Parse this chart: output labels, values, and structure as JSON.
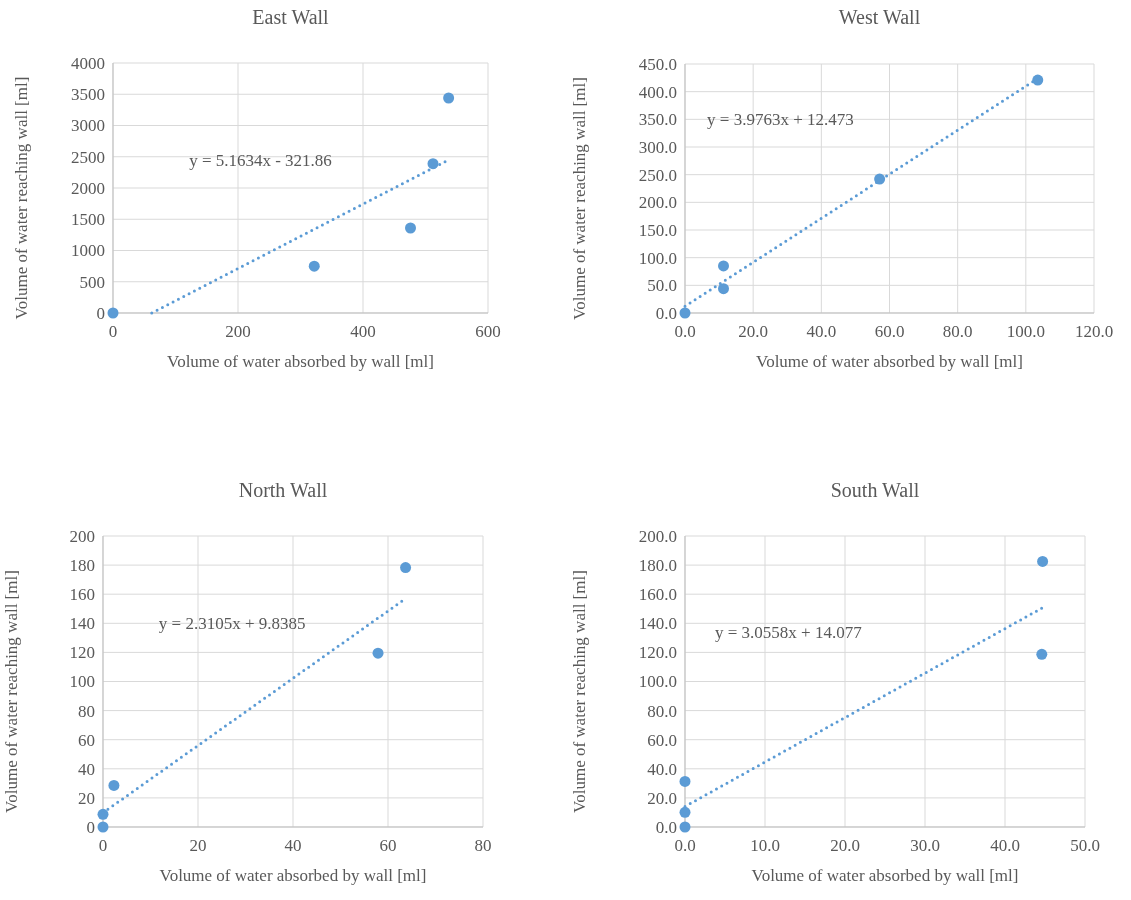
{
  "chart_data": [
    {
      "type": "scatter",
      "title": "East Wall",
      "xlabel": "Volume of water absorbed by wall [ml]",
      "ylabel": "Volume of water reaching wall [ml]",
      "xlim": [
        0,
        600
      ],
      "xticks": [
        0,
        200,
        400,
        600
      ],
      "ylim": [
        0,
        4000
      ],
      "yticks": [
        0,
        500,
        1000,
        1500,
        2000,
        2500,
        3000,
        3500,
        4000
      ],
      "grid": true,
      "annotations": [
        "y = 5.1634x - 321.86"
      ],
      "series": [
        {
          "color": "#5b9bd5",
          "marker": "circle",
          "x": [
            0,
            322,
            476,
            512,
            537
          ],
          "values": [
            0,
            750,
            1360,
            2390,
            3440
          ]
        },
        {
          "type": "line",
          "color": "#5b9bd5",
          "marker": "none",
          "line_style": "dotted",
          "x": [
            62,
            537
          ],
          "values": [
            0,
            2450
          ]
        }
      ]
    },
    {
      "type": "scatter",
      "title": "West Wall",
      "xlabel": "Volume of water absorbed by wall [ml]",
      "ylabel": "Volume of water reaching wall [ml]",
      "xlim": [
        0,
        120
      ],
      "xticks": [
        {
          "value": 0,
          "label": "0.0"
        },
        {
          "value": 20,
          "label": "20.0"
        },
        {
          "value": 40,
          "label": "40.0"
        },
        {
          "value": 60,
          "label": "60.0"
        },
        {
          "value": 80,
          "label": "80.0"
        },
        {
          "value": 100,
          "label": "100.0"
        },
        {
          "value": 120,
          "label": "120.0"
        }
      ],
      "ylim": [
        0,
        450
      ],
      "yticks": [
        {
          "value": 0,
          "label": "0.0"
        },
        {
          "value": 50,
          "label": "50.0"
        },
        {
          "value": 100,
          "label": "100.0"
        },
        {
          "value": 150,
          "label": "150.0"
        },
        {
          "value": 200,
          "label": "200.0"
        },
        {
          "value": 250,
          "label": "250.0"
        },
        {
          "value": 300,
          "label": "300.0"
        },
        {
          "value": 350,
          "label": "350.0"
        },
        {
          "value": 400,
          "label": "400.0"
        },
        {
          "value": 450,
          "label": "450.0"
        }
      ],
      "grid": true,
      "annotations": [
        "y = 3.9763x + 12.473"
      ],
      "series": [
        {
          "color": "#5b9bd5",
          "marker": "circle",
          "x": [
            0,
            11.3,
            11.3,
            57.1,
            103.5
          ],
          "values": [
            0,
            85,
            44,
            242,
            421
          ]
        },
        {
          "type": "line",
          "color": "#5b9bd5",
          "marker": "none",
          "line_style": "dotted",
          "x": [
            0,
            103.5
          ],
          "values": [
            12,
            424
          ]
        }
      ]
    },
    {
      "type": "scatter",
      "title": "North Wall",
      "xlabel": "Volume of water absorbed by wall [ml]",
      "ylabel": "Volume of water reaching wall [ml]",
      "xlim": [
        0,
        80
      ],
      "xticks": [
        0,
        20,
        40,
        60,
        80
      ],
      "ylim": [
        0,
        200
      ],
      "yticks": [
        0,
        20,
        40,
        60,
        80,
        100,
        120,
        140,
        160,
        180,
        200
      ],
      "grid": true,
      "annotations": [
        "y = 2.3105x + 9.8385"
      ],
      "series": [
        {
          "color": "#5b9bd5",
          "marker": "circle",
          "x": [
            0,
            0,
            2.3,
            57.9,
            63.7
          ],
          "values": [
            0,
            8.7,
            28.6,
            119.5,
            178.3
          ]
        },
        {
          "type": "line",
          "color": "#5b9bd5",
          "marker": "none",
          "line_style": "dotted",
          "x": [
            0,
            63.7
          ],
          "values": [
            9.8,
            157
          ]
        }
      ]
    },
    {
      "type": "scatter",
      "title": "South Wall",
      "xlabel": "Volume of water absorbed by wall [ml]",
      "ylabel": "Volume of water reaching wall [ml]",
      "xlim": [
        0,
        50
      ],
      "xticks": [
        {
          "value": 0,
          "label": "0.0"
        },
        {
          "value": 10,
          "label": "10.0"
        },
        {
          "value": 20,
          "label": "20.0"
        },
        {
          "value": 30,
          "label": "30.0"
        },
        {
          "value": 40,
          "label": "40.0"
        },
        {
          "value": 50,
          "label": "50.0"
        }
      ],
      "ylim": [
        0,
        200
      ],
      "yticks": [
        {
          "value": 0,
          "label": "0.0"
        },
        {
          "value": 20,
          "label": "20.0"
        },
        {
          "value": 40,
          "label": "40.0"
        },
        {
          "value": 60,
          "label": "60.0"
        },
        {
          "value": 80,
          "label": "80.0"
        },
        {
          "value": 100,
          "label": "100.0"
        },
        {
          "value": 120,
          "label": "120.0"
        },
        {
          "value": 140,
          "label": "140.0"
        },
        {
          "value": 160,
          "label": "160.0"
        },
        {
          "value": 180,
          "label": "180.0"
        },
        {
          "value": 200,
          "label": "200.0"
        }
      ],
      "grid": true,
      "annotations": [
        "y = 3.0558x + 14.077"
      ],
      "series": [
        {
          "color": "#5b9bd5",
          "marker": "circle",
          "x": [
            0,
            0,
            0,
            44.6,
            44.7
          ],
          "values": [
            0,
            10.1,
            31.3,
            118.7,
            182.5
          ]
        },
        {
          "type": "line",
          "color": "#5b9bd5",
          "marker": "none",
          "line_style": "dotted",
          "x": [
            0,
            44.7
          ],
          "values": [
            14.1,
            150.7
          ]
        }
      ]
    }
  ]
}
